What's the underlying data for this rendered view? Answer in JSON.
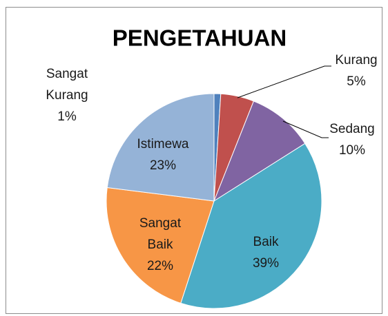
{
  "chart_data": {
    "type": "pie",
    "title": "PENGETAHUAN",
    "categories": [
      "Sangat Kurang",
      "Kurang",
      "Sedang",
      "Baik",
      "Sangat Baik",
      "Istimewa"
    ],
    "values": [
      1,
      5,
      10,
      39,
      22,
      23
    ],
    "value_labels": [
      "1%",
      "5%",
      "10%",
      "39%",
      "22%",
      "23%"
    ],
    "colors": [
      "#4f81bd",
      "#c0504d",
      "#8064a2",
      "#4bacc6",
      "#f79646",
      "#95b3d7"
    ]
  }
}
